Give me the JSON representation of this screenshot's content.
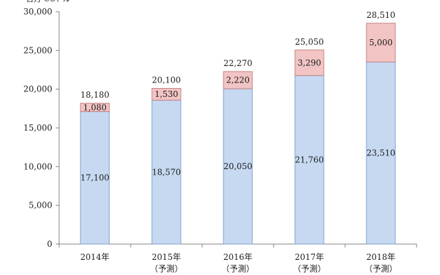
{
  "chart_data": {
    "type": "bar",
    "stacked": true,
    "unit_label": "百万 USドル",
    "categories": [
      [
        "2014年"
      ],
      [
        "2015年",
        "（予測）"
      ],
      [
        "2016年",
        "（予測）"
      ],
      [
        "2017年",
        "（予測）"
      ],
      [
        "2018年",
        "（予測）"
      ]
    ],
    "series": [
      {
        "values": [
          17100,
          18570,
          20050,
          21760,
          23510
        ],
        "color": "#c6d9f1",
        "border": "#7f9fcf"
      },
      {
        "values": [
          1080,
          1530,
          2220,
          3290,
          5000
        ],
        "color": "#f2c4c4",
        "border": "#c48080"
      }
    ],
    "totals": [
      18180,
      20100,
      22270,
      25050,
      28510
    ],
    "ylim": [
      0,
      30000
    ],
    "yticks": [
      0,
      5000,
      10000,
      15000,
      20000,
      25000,
      30000
    ],
    "grid": false,
    "legend": "none"
  }
}
